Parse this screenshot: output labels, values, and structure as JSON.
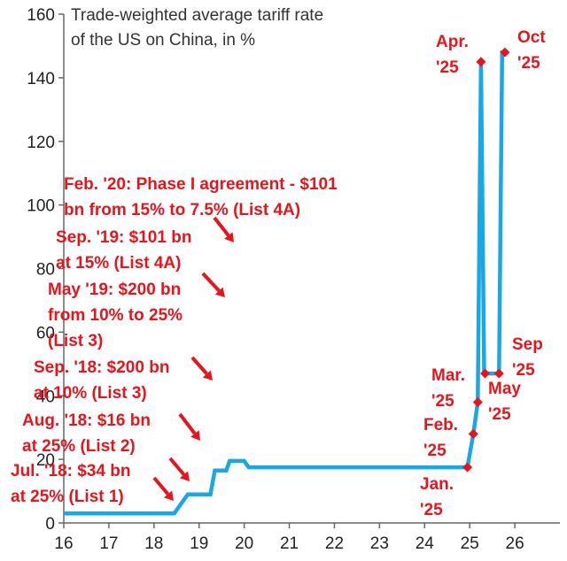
{
  "chart_data": {
    "type": "line",
    "title": "Trade-weighted average tariff rate\nof the US on China, in %",
    "xlabel": "",
    "ylabel": "",
    "xlim": [
      16,
      27
    ],
    "ylim": [
      0,
      160
    ],
    "x_ticks": [
      16,
      17,
      18,
      19,
      20,
      21,
      22,
      23,
      24,
      25,
      26
    ],
    "x_tick_labels": [
      "16",
      "17",
      "18",
      "19",
      "20",
      "21",
      "22",
      "23",
      "24",
      "25",
      "26"
    ],
    "y_ticks": [
      0,
      20,
      40,
      60,
      80,
      100,
      120,
      140,
      160
    ],
    "y_tick_labels": [
      "0",
      "20",
      "40",
      "60",
      "80",
      "100",
      "120",
      "140",
      "160"
    ],
    "grid": false,
    "legend": "none",
    "series": [
      {
        "color": "#1aa7e6",
        "x": [
          16.0,
          18.45,
          18.55,
          18.65,
          18.75,
          19.25,
          19.35,
          19.6,
          19.68,
          20.0,
          20.1,
          24.95,
          25.08,
          25.18,
          25.25,
          25.32,
          25.38,
          25.65,
          25.72,
          25.78
        ],
        "y": [
          3.0,
          3.0,
          5.0,
          7.0,
          9.0,
          9.0,
          16.5,
          16.5,
          19.5,
          19.5,
          17.5,
          17.5,
          28.0,
          38.0,
          145.0,
          47.0,
          47.0,
          47.0,
          148.0,
          148.0
        ]
      }
    ],
    "markers": [
      {
        "x": 24.95,
        "y": 17.5,
        "color": "#e8141b"
      },
      {
        "x": 25.08,
        "y": 28.0,
        "color": "#e8141b"
      },
      {
        "x": 25.18,
        "y": 38.0,
        "color": "#e8141b"
      },
      {
        "x": 25.25,
        "y": 145.0,
        "color": "#e8141b"
      },
      {
        "x": 25.34,
        "y": 47.0,
        "color": "#e8141b"
      },
      {
        "x": 25.65,
        "y": 47.0,
        "color": "#e8141b"
      },
      {
        "x": 25.78,
        "y": 148.0,
        "color": "#e8141b"
      }
    ],
    "annotations": [
      {
        "text": "Feb. '20: Phase I agreement - $101\nbn from 15% to 7.5% (List 4A)"
      },
      {
        "text": "Sep. '19: $101 bn\nat 15% (List 4A)"
      },
      {
        "text": "May '19: $200 bn\nfrom 10% to 25%\n(List 3)"
      },
      {
        "text": "Sep. '18: $200 bn\nat 10% (List 3)"
      },
      {
        "text": "Aug. '18: $16 bn\nat 25% (List 2)"
      },
      {
        "text": "Jul. '18: $34 bn\nat 25% (List 1)"
      },
      {
        "text": "Jan.\n'25"
      },
      {
        "text": "Feb.\n'25"
      },
      {
        "text": "Mar.\n'25"
      },
      {
        "text": "Apr.\n'25"
      },
      {
        "text": "May\n'25"
      },
      {
        "text": "Sep\n'25"
      },
      {
        "text": "Oct\n'25"
      }
    ],
    "annotation_color": "#e8141b"
  }
}
